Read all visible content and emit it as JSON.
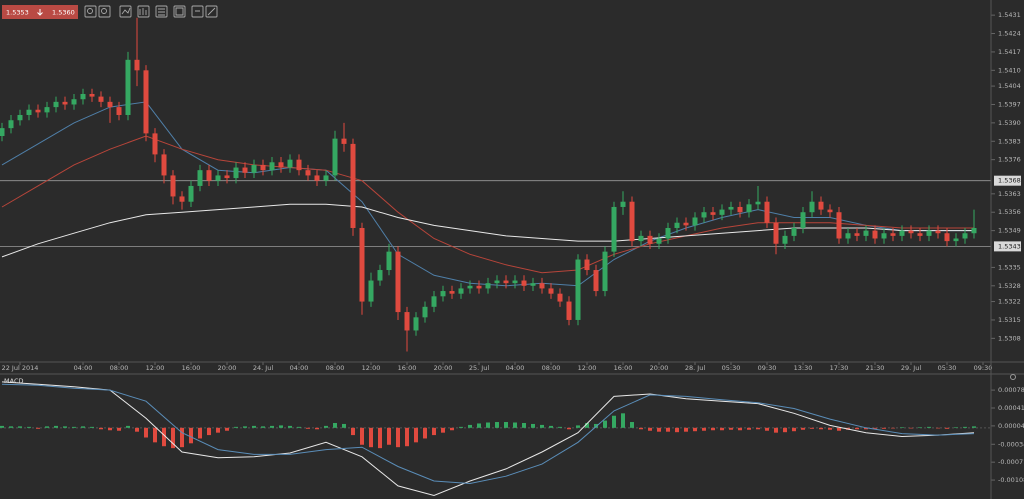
{
  "toolbar": {
    "bid": "1.5353",
    "ask": "1.5360"
  },
  "chart_data": [
    {
      "type": "candlestick",
      "up_color": "#35a862",
      "down_color": "#e04a3f",
      "xlim": [
        0,
        109
      ],
      "ylim": [
        1.5299,
        1.5436
      ],
      "yticks": [
        1.5431,
        1.5424,
        1.5417,
        {
          "value": 1.541,
          "label": "1.5410"
        },
        1.5404,
        1.5397,
        {
          "value": 1.539,
          "label": "1.5390"
        },
        1.5383,
        1.5376,
        1.5363,
        1.5356,
        1.5349,
        1.5335,
        1.5328,
        1.5322,
        1.5315,
        1.5308
      ],
      "xticks": [
        {
          "value": 2,
          "label": "22 Jul 2014"
        },
        {
          "value": 9,
          "label": "04:00"
        },
        {
          "value": 13,
          "label": "08:00"
        },
        {
          "value": 17,
          "label": "12:00"
        },
        {
          "value": 21,
          "label": "16:00"
        },
        {
          "value": 25,
          "label": "20:00"
        },
        {
          "value": 29,
          "label": "24. Jul"
        },
        {
          "value": 33,
          "label": "04:00"
        },
        {
          "value": 37,
          "label": "08:00"
        },
        {
          "value": 41,
          "label": "12:00"
        },
        {
          "value": 45,
          "label": "16:00"
        },
        {
          "value": 49,
          "label": "20:00"
        },
        {
          "value": 53,
          "label": "25. Jul"
        },
        {
          "value": 57,
          "label": "04:00"
        },
        {
          "value": 61,
          "label": "08:00"
        },
        {
          "value": 65,
          "label": "12:00"
        },
        {
          "value": 69,
          "label": "16:00"
        },
        {
          "value": 73,
          "label": "20:00"
        },
        {
          "value": 77,
          "label": "28. Jul"
        },
        {
          "value": 81,
          "label": "05:30"
        },
        {
          "value": 85,
          "label": "09:30"
        },
        {
          "value": 89,
          "label": "13:30"
        },
        {
          "value": 93,
          "label": "17:30"
        },
        {
          "value": 97,
          "label": "21:30"
        },
        {
          "value": 101,
          "label": "29. Jul"
        },
        {
          "value": 105,
          "label": "05:30"
        },
        {
          "value": 109,
          "label": "09:30"
        }
      ],
      "hlines": [
        1.5368,
        1.5343
      ],
      "open": [
        1.5385,
        1.5388,
        1.5391,
        1.5393,
        1.5395,
        1.5394,
        1.5396,
        1.5398,
        1.5397,
        1.5399,
        1.5401,
        1.54,
        1.5398,
        1.5396,
        1.5393,
        1.5414,
        1.541,
        1.5386,
        1.5378,
        1.537,
        1.5362,
        1.536,
        1.5366,
        1.5372,
        1.5368,
        1.537,
        1.5369,
        1.5373,
        1.5371,
        1.5374,
        1.5372,
        1.5375,
        1.5373,
        1.5376,
        1.5372,
        1.537,
        1.5368,
        1.537,
        1.5384,
        1.5382,
        1.535,
        1.5322,
        1.533,
        1.5334,
        1.5341,
        1.5318,
        1.5311,
        1.5316,
        1.532,
        1.5324,
        1.5326,
        1.5325,
        1.5327,
        1.5328,
        1.5327,
        1.5329,
        1.533,
        1.5329,
        1.533,
        1.5328,
        1.5329,
        1.5327,
        1.5325,
        1.5322,
        1.5315,
        1.5338,
        1.5334,
        1.5326,
        1.5341,
        1.5358,
        1.536,
        1.5345,
        1.5347,
        1.5344,
        1.5346,
        1.535,
        1.5352,
        1.5351,
        1.5354,
        1.5356,
        1.5355,
        1.5357,
        1.5358,
        1.5356,
        1.5359,
        1.536,
        1.5352,
        1.5344,
        1.5347,
        1.535,
        1.5356,
        1.536,
        1.5357,
        1.5356,
        1.5346,
        1.5348,
        1.5347,
        1.5349,
        1.5346,
        1.5348,
        1.5347,
        1.5349,
        1.5348,
        1.5347,
        1.5349,
        1.5348,
        1.5345,
        1.5346,
        1.5348
      ],
      "high": [
        1.539,
        1.5393,
        1.5395,
        1.5397,
        1.5397,
        1.5398,
        1.54,
        1.54,
        1.5401,
        1.5403,
        1.5403,
        1.5402,
        1.54,
        1.5398,
        1.5417,
        1.543,
        1.5412,
        1.5388,
        1.538,
        1.5372,
        1.5364,
        1.5368,
        1.5374,
        1.5374,
        1.5372,
        1.5372,
        1.5375,
        1.5375,
        1.5376,
        1.5376,
        1.5377,
        1.5377,
        1.5378,
        1.5378,
        1.5374,
        1.5372,
        1.5372,
        1.5387,
        1.539,
        1.5384,
        1.5352,
        1.5333,
        1.5336,
        1.5344,
        1.5343,
        1.532,
        1.5318,
        1.5322,
        1.5326,
        1.5328,
        1.5328,
        1.5329,
        1.533,
        1.533,
        1.5331,
        1.5332,
        1.5332,
        1.5332,
        1.5332,
        1.5331,
        1.5331,
        1.5329,
        1.5327,
        1.5324,
        1.534,
        1.534,
        1.5336,
        1.5343,
        1.536,
        1.5364,
        1.5362,
        1.5349,
        1.5349,
        1.5348,
        1.5352,
        1.5354,
        1.5354,
        1.5356,
        1.5358,
        1.5358,
        1.5359,
        1.536,
        1.536,
        1.5361,
        1.5366,
        1.5362,
        1.5354,
        1.5349,
        1.5352,
        1.5358,
        1.5364,
        1.5362,
        1.5359,
        1.5358,
        1.535,
        1.535,
        1.5351,
        1.5351,
        1.535,
        1.535,
        1.5351,
        1.5351,
        1.535,
        1.5351,
        1.5351,
        1.535,
        1.5348,
        1.535,
        1.5357
      ],
      "low": [
        1.5383,
        1.5386,
        1.5389,
        1.5391,
        1.5392,
        1.5392,
        1.5394,
        1.5395,
        1.5395,
        1.5397,
        1.5398,
        1.5396,
        1.539,
        1.5391,
        1.5391,
        1.5404,
        1.5383,
        1.5375,
        1.5367,
        1.5359,
        1.5357,
        1.5358,
        1.5364,
        1.5366,
        1.5366,
        1.5367,
        1.5367,
        1.5369,
        1.5369,
        1.537,
        1.537,
        1.5371,
        1.5371,
        1.537,
        1.5368,
        1.5366,
        1.5366,
        1.5368,
        1.5379,
        1.5347,
        1.5317,
        1.532,
        1.5328,
        1.5332,
        1.5315,
        1.5303,
        1.5309,
        1.5314,
        1.5318,
        1.5322,
        1.5323,
        1.5323,
        1.5325,
        1.5325,
        1.5325,
        1.5327,
        1.5327,
        1.5327,
        1.5326,
        1.5326,
        1.5325,
        1.5323,
        1.532,
        1.5313,
        1.5313,
        1.5332,
        1.5324,
        1.5324,
        1.5339,
        1.5355,
        1.5343,
        1.5343,
        1.5342,
        1.5342,
        1.5344,
        1.5348,
        1.5349,
        1.5349,
        1.5352,
        1.5353,
        1.5353,
        1.5355,
        1.5354,
        1.5354,
        1.5357,
        1.535,
        1.534,
        1.5342,
        1.5345,
        1.5348,
        1.5354,
        1.5355,
        1.5354,
        1.5344,
        1.5344,
        1.5345,
        1.5345,
        1.5344,
        1.5344,
        1.5345,
        1.5345,
        1.5346,
        1.5345,
        1.5345,
        1.5346,
        1.5343,
        1.5343,
        1.5344,
        1.5346
      ],
      "close": [
        1.5388,
        1.5391,
        1.5393,
        1.5395,
        1.5394,
        1.5396,
        1.5398,
        1.5397,
        1.5399,
        1.5401,
        1.54,
        1.5398,
        1.5396,
        1.5393,
        1.5414,
        1.541,
        1.5386,
        1.5378,
        1.537,
        1.5362,
        1.536,
        1.5366,
        1.5372,
        1.5368,
        1.537,
        1.5369,
        1.5373,
        1.5371,
        1.5374,
        1.5372,
        1.5375,
        1.5373,
        1.5376,
        1.5372,
        1.537,
        1.5368,
        1.537,
        1.5384,
        1.5382,
        1.535,
        1.5322,
        1.533,
        1.5334,
        1.5341,
        1.5318,
        1.5311,
        1.5316,
        1.532,
        1.5324,
        1.5326,
        1.5325,
        1.5327,
        1.5328,
        1.5327,
        1.5329,
        1.533,
        1.5329,
        1.533,
        1.5328,
        1.5329,
        1.5327,
        1.5325,
        1.5322,
        1.5315,
        1.5338,
        1.5334,
        1.5326,
        1.5341,
        1.5358,
        1.536,
        1.5345,
        1.5347,
        1.5344,
        1.5346,
        1.535,
        1.5352,
        1.5351,
        1.5354,
        1.5356,
        1.5355,
        1.5357,
        1.5358,
        1.5356,
        1.5359,
        1.536,
        1.5352,
        1.5344,
        1.5347,
        1.535,
        1.5356,
        1.536,
        1.5357,
        1.5356,
        1.5346,
        1.5348,
        1.5347,
        1.5349,
        1.5346,
        1.5348,
        1.5347,
        1.5349,
        1.5348,
        1.5347,
        1.5349,
        1.5348,
        1.5345,
        1.5346,
        1.5348,
        1.535
      ],
      "lines": [
        {
          "color": "#4f7fa8",
          "x": [
            0,
            4,
            8,
            12,
            16,
            20,
            24,
            28,
            32,
            36,
            40,
            44,
            48,
            52,
            56,
            60,
            64,
            68,
            72,
            76,
            80,
            84,
            88,
            92,
            96,
            100,
            104,
            108
          ],
          "values": [
            1.5374,
            1.5382,
            1.539,
            1.5396,
            1.5398,
            1.538,
            1.5372,
            1.5371,
            1.5373,
            1.5372,
            1.536,
            1.534,
            1.5332,
            1.5329,
            1.5328,
            1.5329,
            1.5328,
            1.5338,
            1.5345,
            1.535,
            1.5354,
            1.5357,
            1.5354,
            1.5354,
            1.5351,
            1.5349,
            1.5349,
            1.5349
          ]
        },
        {
          "color": "#b8453a",
          "x": [
            0,
            4,
            8,
            12,
            16,
            20,
            24,
            28,
            32,
            36,
            40,
            44,
            48,
            52,
            56,
            60,
            64,
            68,
            72,
            76,
            80,
            84,
            88,
            92,
            96,
            100,
            104,
            108
          ],
          "values": [
            1.5358,
            1.5366,
            1.5374,
            1.538,
            1.5385,
            1.538,
            1.5376,
            1.5374,
            1.5373,
            1.5372,
            1.5368,
            1.5356,
            1.5346,
            1.534,
            1.5336,
            1.5333,
            1.5334,
            1.534,
            1.5344,
            1.5347,
            1.535,
            1.5352,
            1.5352,
            1.5352,
            1.5351,
            1.535,
            1.535,
            1.535
          ]
        },
        {
          "color": "#e8e8e8",
          "x": [
            0,
            4,
            8,
            12,
            16,
            20,
            24,
            28,
            32,
            36,
            40,
            44,
            48,
            52,
            56,
            60,
            64,
            68,
            72,
            76,
            80,
            84,
            88,
            92,
            96,
            100,
            104,
            108
          ],
          "values": [
            1.5339,
            1.5344,
            1.5348,
            1.5352,
            1.5355,
            1.5356,
            1.5357,
            1.5358,
            1.5359,
            1.5359,
            1.5358,
            1.5354,
            1.5351,
            1.5349,
            1.5347,
            1.5346,
            1.5345,
            1.5345,
            1.5346,
            1.5347,
            1.5348,
            1.5349,
            1.535,
            1.535,
            1.535,
            1.5349,
            1.5349,
            1.5349
          ]
        }
      ]
    },
    {
      "type": "macd",
      "title": "MACD",
      "up_color": "#35a862",
      "down_color": "#e04a3f",
      "xlim": [
        0,
        109
      ],
      "ylim": [
        -0.00143,
        0.00103
      ],
      "yticks": [
        0.00078,
        0.00041,
        4e-05,
        -0.00034,
        -0.00071,
        -0.00108
      ],
      "histogram": [
        4e-05,
        3e-05,
        3e-05,
        2e-05,
        -2e-05,
        3e-05,
        4e-05,
        3e-05,
        2e-05,
        3e-05,
        2e-05,
        -3e-05,
        -5e-05,
        -6e-05,
        4e-05,
        -8e-05,
        -0.0002,
        -0.0003,
        -0.00038,
        -0.00042,
        -0.0004,
        -0.00032,
        -0.00022,
        -0.00015,
        -0.0001,
        -6e-05,
        2e-05,
        3e-05,
        4e-05,
        3e-05,
        4e-05,
        5e-05,
        4e-05,
        2e-05,
        -2e-05,
        -3e-05,
        4e-05,
        0.0001,
        8e-05,
        -0.00015,
        -0.00035,
        -0.0004,
        -0.00042,
        -0.00035,
        -0.0004,
        -0.00038,
        -0.0003,
        -0.00022,
        -0.00015,
        -0.0001,
        -5e-05,
        2e-05,
        6e-05,
        9e-05,
        0.00011,
        0.00012,
        0.00012,
        0.00011,
        0.0001,
        8e-05,
        6e-05,
        4e-05,
        2e-05,
        -3e-05,
        5e-05,
        0.0001,
        8e-05,
        0.00015,
        0.00025,
        0.0003,
        0.00012,
        -3e-05,
        -6e-05,
        -8e-05,
        -8e-05,
        -9e-05,
        -8e-05,
        -7e-05,
        -6e-05,
        -5e-05,
        -5e-05,
        -4e-05,
        -5e-05,
        -4e-05,
        -3e-05,
        -6e-05,
        -0.0001,
        -9e-05,
        -7e-05,
        -4e-05,
        -2e-05,
        -3e-05,
        -4e-05,
        -6e-05,
        -4e-05,
        -3e-05,
        -3e-05,
        -2e-05,
        -2e-05,
        -1e-05,
        1e-05,
        -1e-05,
        1e-05,
        2e-05,
        -1e-05,
        -2e-05,
        1e-05,
        2e-05,
        3e-05
      ],
      "lines": [
        {
          "color": "#e8e8e8",
          "x": [
            0,
            4,
            8,
            12,
            16,
            20,
            24,
            28,
            32,
            36,
            40,
            44,
            48,
            52,
            56,
            60,
            64,
            68,
            72,
            76,
            80,
            84,
            88,
            92,
            96,
            100,
            104,
            108
          ],
          "values": [
            0.00095,
            0.0009,
            0.00085,
            0.00078,
            0.0002,
            -0.0005,
            -0.00062,
            -0.0006,
            -0.00052,
            -0.0003,
            -0.0006,
            -0.0012,
            -0.0014,
            -0.0011,
            -0.00085,
            -0.0005,
            -0.0001,
            0.00065,
            0.0007,
            0.0006,
            0.00055,
            0.0005,
            0.0003,
            5e-05,
            -0.0001,
            -0.00018,
            -0.00015,
            -0.0001
          ]
        },
        {
          "color": "#5a8db8",
          "x": [
            0,
            4,
            8,
            12,
            16,
            20,
            24,
            28,
            32,
            36,
            40,
            44,
            48,
            52,
            56,
            60,
            64,
            68,
            72,
            76,
            80,
            84,
            88,
            92,
            96,
            100,
            104,
            108
          ],
          "values": [
            0.0009,
            0.00088,
            0.00082,
            0.00078,
            0.00055,
            -0.0001,
            -0.00045,
            -0.00055,
            -0.00055,
            -0.00045,
            -0.0004,
            -0.0008,
            -0.0011,
            -0.00115,
            -0.001,
            -0.00075,
            -0.0003,
            0.00035,
            0.00068,
            0.00065,
            0.00058,
            0.00052,
            0.0004,
            0.00018,
            0,
            -0.00012,
            -0.00015,
            -0.00012
          ]
        }
      ]
    }
  ]
}
